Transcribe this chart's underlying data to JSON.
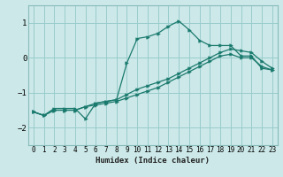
{
  "xlabel": "Humidex (Indice chaleur)",
  "background_color": "#cce8e8",
  "grid_color": "#99cccc",
  "line_color": "#1a7a6e",
  "xlim": [
    -0.5,
    23.5
  ],
  "ylim": [
    -2.5,
    1.5
  ],
  "xticks": [
    0,
    1,
    2,
    3,
    4,
    5,
    6,
    7,
    8,
    9,
    10,
    11,
    12,
    13,
    14,
    15,
    16,
    17,
    18,
    19,
    20,
    21,
    22,
    23
  ],
  "yticks": [
    -2,
    -1,
    0,
    1
  ],
  "line1_x": [
    0,
    1,
    2,
    3,
    4,
    5,
    6,
    7,
    8,
    9,
    10,
    11,
    12,
    13,
    14,
    15,
    16,
    17,
    18,
    19,
    20,
    21,
    22,
    23
  ],
  "line1_y": [
    -1.55,
    -1.65,
    -1.45,
    -1.45,
    -1.45,
    -1.75,
    -1.3,
    -1.25,
    -1.2,
    -0.15,
    0.55,
    0.6,
    0.7,
    0.9,
    1.05,
    0.8,
    0.5,
    0.35,
    0.35,
    0.35,
    0.05,
    0.05,
    -0.3,
    -0.35
  ],
  "line2_x": [
    0,
    1,
    2,
    3,
    4,
    5,
    6,
    7,
    8,
    9,
    10,
    11,
    12,
    13,
    14,
    15,
    16,
    17,
    18,
    19,
    20,
    21,
    22,
    23
  ],
  "line2_y": [
    -1.55,
    -1.65,
    -1.5,
    -1.5,
    -1.5,
    -1.4,
    -1.35,
    -1.3,
    -1.25,
    -1.15,
    -1.05,
    -0.95,
    -0.85,
    -0.7,
    -0.55,
    -0.4,
    -0.25,
    -0.1,
    0.05,
    0.1,
    0.0,
    0.0,
    -0.25,
    -0.35
  ],
  "line3_x": [
    0,
    1,
    2,
    3,
    4,
    5,
    6,
    7,
    8,
    9,
    10,
    11,
    12,
    13,
    14,
    15,
    16,
    17,
    18,
    19,
    20,
    21,
    22,
    23
  ],
  "line3_y": [
    -1.55,
    -1.65,
    -1.5,
    -1.5,
    -1.5,
    -1.4,
    -1.3,
    -1.25,
    -1.2,
    -1.05,
    -0.9,
    -0.8,
    -0.7,
    -0.6,
    -0.45,
    -0.3,
    -0.15,
    0.0,
    0.15,
    0.25,
    0.2,
    0.15,
    -0.1,
    -0.3
  ]
}
